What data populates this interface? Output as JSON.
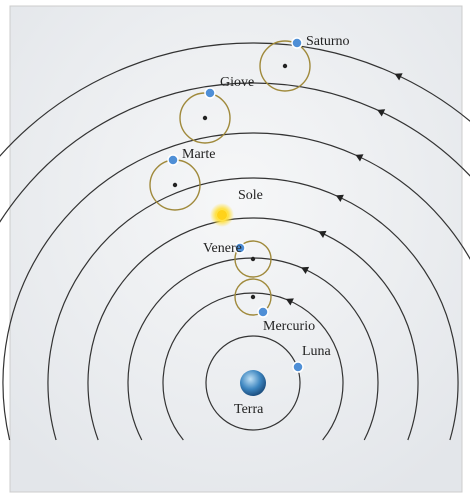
{
  "nodes": [
    {
      "label": "Saturno"
    },
    {
      "label": "Giove"
    },
    {
      "label": "Marte"
    },
    {
      "label": "Sole"
    },
    {
      "label": "Venere"
    },
    {
      "label": "Mercurio"
    },
    {
      "label": "Luna"
    },
    {
      "label": "Terra"
    }
  ]
}
